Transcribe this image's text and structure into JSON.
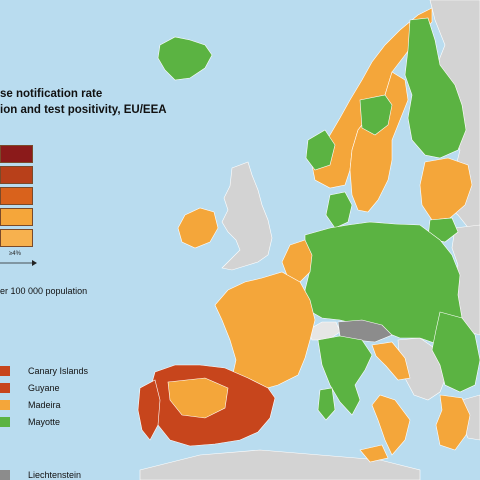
{
  "title_line1": "se notification rate",
  "title_line2": "ion and test positivity, EU/EEA",
  "legend": {
    "colors": [
      "#8b1a1a",
      "#b8401a",
      "#d9621c",
      "#f5a63a",
      "#f7b14e"
    ],
    "axis_label": "≥4%",
    "population_note": "er 100 000 population"
  },
  "regions": [
    {
      "label": "Canary Islands",
      "color": "#c7451c"
    },
    {
      "label": "Guyane",
      "color": "#c7451c"
    },
    {
      "label": "Madeira",
      "color": "#f4a63a"
    },
    {
      "label": "Mayotte",
      "color": "#5bb342"
    }
  ],
  "other_region": {
    "label": "Liechtenstein",
    "color": "#8c8c8c"
  },
  "palette": {
    "sea": "#b9dcef",
    "green": "#5bb342",
    "orange": "#f4a63a",
    "red": "#c7451c",
    "grey_non_eu": "#d3d3d3",
    "dark_grey": "#8c8c8c"
  }
}
